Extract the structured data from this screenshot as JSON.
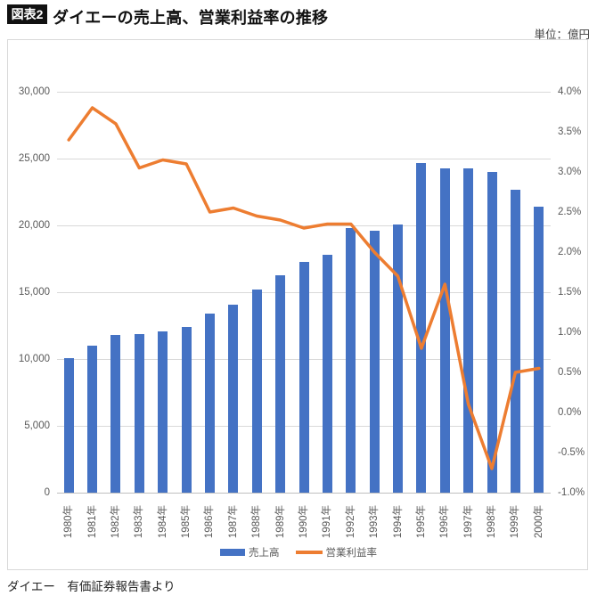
{
  "header": {
    "tag": "図表2",
    "title": "ダイエーの売上高、営業利益率の推移",
    "unit": "単位：億円"
  },
  "footer": {
    "source": "ダイエー　有価証券報告書より"
  },
  "colors": {
    "bar": "#4472C4",
    "line": "#ED7D31",
    "gridline": "#d9d9d9",
    "axis_line": "#bfbfbf",
    "tick_text": "#595959"
  },
  "chart_data": {
    "type": "bar",
    "subtype": "bar-and-line-combo",
    "categories": [
      "1980年",
      "1981年",
      "1982年",
      "1983年",
      "1984年",
      "1985年",
      "1986年",
      "1987年",
      "1988年",
      "1989年",
      "1990年",
      "1991年",
      "1992年",
      "1993年",
      "1994年",
      "1995年",
      "1996年",
      "1997年",
      "1998年",
      "1999年",
      "2000年"
    ],
    "series": [
      {
        "name": "売上高",
        "type": "bar",
        "axis": "left",
        "color": "#4472C4",
        "values": [
          10100,
          11000,
          11800,
          11900,
          12100,
          12400,
          13400,
          14100,
          15200,
          16300,
          17300,
          17800,
          19800,
          19600,
          20100,
          24700,
          24300,
          24300,
          24000,
          22700,
          21400
        ]
      },
      {
        "name": "営業利益率",
        "type": "line",
        "axis": "right",
        "color": "#ED7D31",
        "values": [
          3.4,
          3.8,
          3.6,
          3.05,
          3.15,
          3.1,
          2.5,
          2.55,
          2.45,
          2.4,
          2.3,
          2.35,
          2.35,
          2.0,
          1.7,
          0.8,
          1.6,
          0.1,
          -0.7,
          0.5,
          0.55
        ]
      }
    ],
    "left_axis": {
      "min": 0,
      "max": 30000,
      "step": 5000,
      "tick_labels_top_to_bottom": [
        "30,000",
        "25,000",
        "20,000",
        "15,000",
        "10,000",
        "5,000",
        "0"
      ]
    },
    "right_axis": {
      "min": -1.0,
      "max": 4.0,
      "step": 0.5,
      "tick_labels_top_to_bottom": [
        "4.0%",
        "3.5%",
        "3.0%",
        "2.5%",
        "2.0%",
        "1.5%",
        "1.0%",
        "0.5%",
        "0.0%",
        "-0.5%",
        "-1.0%"
      ]
    },
    "grid": true,
    "legend_position": "bottom"
  }
}
